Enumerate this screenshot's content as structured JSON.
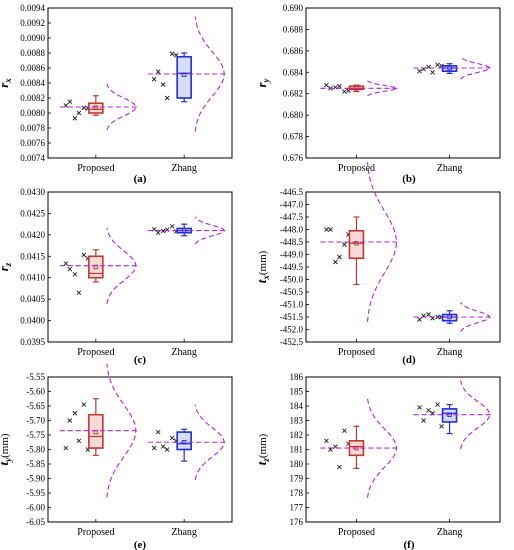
{
  "chart_data": [
    {
      "type": "box",
      "panel_label": "(a)",
      "ylabel": "r",
      "ylabel_sub": "x",
      "ylabel_unit": "",
      "ylim": [
        0.0074,
        0.0094
      ],
      "yticks": [
        "0.0074",
        "0.0076",
        "0.0078",
        "0.0080",
        "0.0082",
        "0.0084",
        "0.0086",
        "0.0088",
        "0.0090",
        "0.0092",
        "0.0094"
      ],
      "categories": [
        "Proposed",
        "Zhang"
      ],
      "series": [
        {
          "category": "Proposed",
          "color": "#c0392b",
          "q1": 0.008,
          "median": 0.00805,
          "q3": 0.00813,
          "mean": 0.00807,
          "whisker_low": 0.00797,
          "whisker_high": 0.00823,
          "points": [
            0.0081,
            0.00793,
            0.00807,
            0.00815,
            0.008,
            0.00806
          ],
          "dist_mean": 0.00808
        },
        {
          "category": "Zhang",
          "color": "#1f2fd1",
          "q1": 0.0082,
          "median": 0.00853,
          "q3": 0.00875,
          "mean": 0.00851,
          "whisker_low": 0.00815,
          "whisker_high": 0.0088,
          "points": [
            0.00845,
            0.00838,
            0.00879,
            0.00855,
            0.0082,
            0.00877
          ],
          "dist_mean": 0.00852
        }
      ]
    },
    {
      "type": "box",
      "panel_label": "(b)",
      "ylabel": "r",
      "ylabel_sub": "y",
      "ylabel_unit": "",
      "ylim": [
        0.676,
        0.69
      ],
      "yticks": [
        "0.676",
        "0.678",
        "0.680",
        "0.682",
        "0.684",
        "0.686",
        "0.688",
        "0.690"
      ],
      "categories": [
        "Proposed",
        "Zhang"
      ],
      "series": [
        {
          "category": "Proposed",
          "color": "#c0392b",
          "q1": 0.6824,
          "median": 0.6825,
          "q3": 0.6827,
          "mean": 0.6825,
          "whisker_low": 0.6822,
          "whisker_high": 0.6828,
          "points": [
            0.6828,
            0.6826,
            0.6822,
            0.6825,
            0.6827,
            0.6823
          ],
          "dist_mean": 0.6825
        },
        {
          "category": "Zhang",
          "color": "#1f2fd1",
          "q1": 0.6841,
          "median": 0.6844,
          "q3": 0.6846,
          "mean": 0.6844,
          "whisker_low": 0.6839,
          "whisker_high": 0.6848,
          "points": [
            0.6841,
            0.6845,
            0.6847,
            0.6843,
            0.684,
            0.6846
          ],
          "dist_mean": 0.6844
        }
      ]
    },
    {
      "type": "box",
      "panel_label": "(c)",
      "ylabel": "r",
      "ylabel_sub": "z",
      "ylabel_unit": "",
      "ylim": [
        0.0395,
        0.043
      ],
      "yticks": [
        "0.0395",
        "0.0400",
        "0.0405",
        "0.0410",
        "0.0415",
        "0.0420",
        "0.0425",
        "0.0430"
      ],
      "categories": [
        "Proposed",
        "Zhang"
      ],
      "series": [
        {
          "category": "Proposed",
          "color": "#c0392b",
          "q1": 0.041,
          "median": 0.0411,
          "q3": 0.0415,
          "mean": 0.04125,
          "whisker_low": 0.0409,
          "whisker_high": 0.04165,
          "points": [
            0.04133,
            0.04108,
            0.04153,
            0.0412,
            0.04065,
            0.04145
          ],
          "dist_mean": 0.04128
        },
        {
          "category": "Zhang",
          "color": "#1f2fd1",
          "q1": 0.04205,
          "median": 0.0421,
          "q3": 0.04215,
          "mean": 0.0421,
          "whisker_low": 0.04198,
          "whisker_high": 0.04225,
          "points": [
            0.04213,
            0.04209,
            0.0422,
            0.04205,
            0.04212,
            0.04208
          ],
          "dist_mean": 0.0421
        }
      ]
    },
    {
      "type": "box",
      "panel_label": "(d)",
      "ylabel": "t",
      "ylabel_sub": "x",
      "ylabel_unit": "(mm)",
      "ylim": [
        -452.5,
        -446.5
      ],
      "yticks": [
        "-446.5",
        "-447.0",
        "-447.5",
        "-448.0",
        "-448.5",
        "-449.0",
        "-449.5",
        "-450.0",
        "-450.5",
        "-451.0",
        "-451.5",
        "-452.0",
        "-452.5"
      ],
      "categories": [
        "Proposed",
        "Zhang"
      ],
      "series": [
        {
          "category": "Proposed",
          "color": "#c0392b",
          "q1": -449.15,
          "median": -448.55,
          "q3": -448.05,
          "mean": -448.55,
          "whisker_low": -450.2,
          "whisker_high": -447.5,
          "points": [
            -448.0,
            -449.3,
            -448.6,
            -448.0,
            -449.1,
            -448.2
          ],
          "dist_mean": -448.5
        },
        {
          "category": "Zhang",
          "color": "#1f2fd1",
          "q1": -451.65,
          "median": -451.5,
          "q3": -451.4,
          "mean": -451.5,
          "whisker_low": -451.75,
          "whisker_high": -451.25,
          "points": [
            -451.6,
            -451.4,
            -451.5,
            -451.45,
            -451.55,
            -451.5
          ],
          "dist_mean": -451.5
        }
      ]
    },
    {
      "type": "box",
      "panel_label": "(e)",
      "ylabel": "t",
      "ylabel_sub": "y",
      "ylabel_unit": "(mm)",
      "ylim": [
        -6.05,
        -5.55
      ],
      "yticks": [
        "-5.55",
        "-5.60",
        "-5.65",
        "-5.70",
        "-5.75",
        "-5.80",
        "-5.85",
        "-5.90",
        "-5.95",
        "-6.00",
        "-6.05"
      ],
      "categories": [
        "Proposed",
        "Zhang"
      ],
      "series": [
        {
          "category": "Proposed",
          "color": "#c0392b",
          "q1": -5.795,
          "median": -5.755,
          "q3": -5.68,
          "mean": -5.74,
          "whisker_low": -5.82,
          "whisker_high": -5.625,
          "points": [
            -5.795,
            -5.675,
            -5.645,
            -5.7,
            -5.77,
            -5.8
          ],
          "dist_mean": -5.735
        },
        {
          "category": "Zhang",
          "color": "#1f2fd1",
          "q1": -5.8,
          "median": -5.78,
          "q3": -5.74,
          "mean": -5.775,
          "whisker_low": -5.84,
          "whisker_high": -5.73,
          "points": [
            -5.795,
            -5.79,
            -5.76,
            -5.74,
            -5.8,
            -5.77
          ],
          "dist_mean": -5.775
        }
      ]
    },
    {
      "type": "box",
      "panel_label": "(f)",
      "ylabel": "t",
      "ylabel_sub": "z",
      "ylabel_unit": "(mm)",
      "ylim": [
        176,
        186
      ],
      "yticks": [
        "176",
        "177",
        "178",
        "179",
        "180",
        "181",
        "182",
        "183",
        "184",
        "185",
        "186"
      ],
      "categories": [
        "Proposed",
        "Zhang"
      ],
      "series": [
        {
          "category": "Proposed",
          "color": "#c0392b",
          "q1": 180.6,
          "median": 181.2,
          "q3": 181.6,
          "mean": 181.1,
          "whisker_low": 179.7,
          "whisker_high": 182.6,
          "points": [
            181.6,
            181.2,
            182.3,
            181.0,
            179.8,
            181.4
          ],
          "dist_mean": 181.1
        },
        {
          "category": "Zhang",
          "color": "#1f2fd1",
          "q1": 182.9,
          "median": 183.5,
          "q3": 183.8,
          "mean": 183.4,
          "whisker_low": 182.1,
          "whisker_high": 184.1,
          "points": [
            183.9,
            183.7,
            184.1,
            183.0,
            183.5,
            182.6
          ],
          "dist_mean": 183.4
        }
      ]
    }
  ]
}
